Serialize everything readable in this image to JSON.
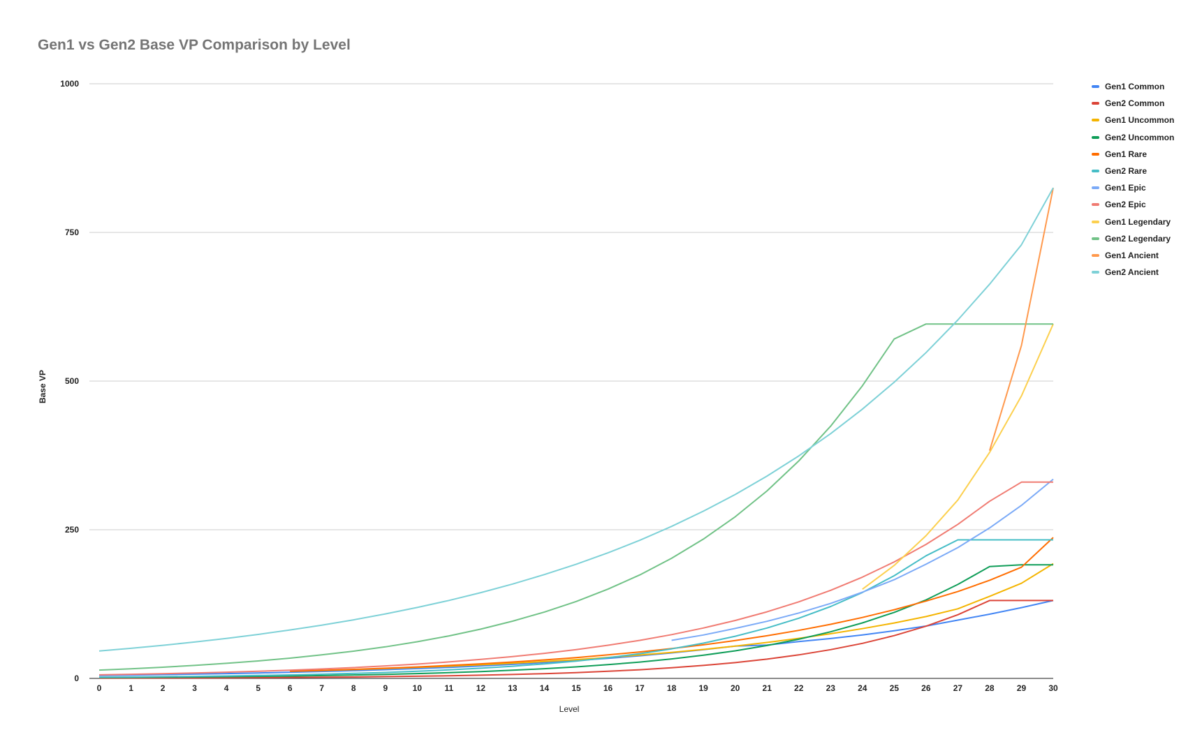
{
  "chart_data": {
    "type": "line",
    "title": "Gen1 vs Gen2 Base VP Comparison by Level",
    "xlabel": "Level",
    "ylabel": "Base VP",
    "xlim": [
      0,
      30
    ],
    "ylim": [
      0,
      1000
    ],
    "x_ticks": [
      0,
      1,
      2,
      3,
      4,
      5,
      6,
      7,
      8,
      9,
      10,
      11,
      12,
      13,
      14,
      15,
      16,
      17,
      18,
      19,
      20,
      21,
      22,
      23,
      24,
      25,
      26,
      27,
      28,
      29,
      30
    ],
    "y_ticks": [
      0,
      250,
      500,
      750,
      1000
    ],
    "grid": true,
    "legend_position": "right",
    "series": [
      {
        "name": "Gen1 Common",
        "color": "#4285f4",
        "x": [
          0,
          1,
          2,
          3,
          4,
          5,
          6,
          7,
          8,
          9,
          10,
          11,
          12,
          13,
          14,
          15,
          16,
          17,
          18,
          19,
          20,
          21,
          22,
          23,
          24,
          25,
          26,
          27,
          28,
          29,
          30
        ],
        "values": [
          5.0,
          5.6,
          6.4,
          7.2,
          8.1,
          9.1,
          10.3,
          11.6,
          13.0,
          14.7,
          16.5,
          18.6,
          21.0,
          23.6,
          26.6,
          30.0,
          33.7,
          38.0,
          42.8,
          48.2,
          54.2,
          56,
          62,
          67,
          73,
          80,
          88,
          98,
          108,
          119,
          131
        ]
      },
      {
        "name": "Gen2 Common",
        "color": "#db4437",
        "x": [
          0,
          1,
          2,
          3,
          4,
          5,
          6,
          7,
          8,
          9,
          10,
          11,
          12,
          13,
          14,
          15,
          16,
          17,
          18,
          19,
          20,
          21,
          22,
          23,
          24,
          25,
          26,
          27,
          28,
          29,
          30
        ],
        "values": [
          0.5,
          0.6,
          0.7,
          0.9,
          1.1,
          1.3,
          1.6,
          2.0,
          2.4,
          3.0,
          3.6,
          4.4,
          5.4,
          6.6,
          8.0,
          9.8,
          12.0,
          14.6,
          17.8,
          21.8,
          26.5,
          32.4,
          39.5,
          48.3,
          58.9,
          71.9,
          87.8,
          107,
          131,
          131,
          131
        ]
      },
      {
        "name": "Gen1 Uncommon",
        "color": "#f4b400",
        "x": [
          6,
          7,
          8,
          9,
          10,
          11,
          12,
          13,
          14,
          15,
          16,
          17,
          18,
          19,
          20,
          21,
          22,
          23,
          24,
          25,
          26,
          27,
          28,
          29,
          30
        ],
        "values": [
          12.0,
          13.3,
          14.8,
          16.5,
          18.4,
          20.5,
          22.9,
          25.5,
          28.4,
          31.6,
          35.2,
          39.3,
          43.7,
          48.7,
          54.3,
          60.5,
          67.4,
          75.1,
          83.7,
          93.2,
          104,
          117,
          138,
          160,
          193
        ]
      },
      {
        "name": "Gen2 Uncommon",
        "color": "#0f9d58",
        "x": [
          0,
          1,
          2,
          3,
          4,
          5,
          6,
          7,
          8,
          9,
          10,
          11,
          12,
          13,
          14,
          15,
          16,
          17,
          18,
          19,
          20,
          21,
          22,
          23,
          24,
          25,
          26,
          27,
          28,
          29,
          30
        ],
        "values": [
          1.4,
          1.7,
          2.0,
          2.4,
          2.8,
          3.4,
          4.0,
          4.8,
          5.7,
          6.8,
          8.1,
          9.6,
          11.5,
          13.7,
          16.3,
          19.4,
          23.1,
          27.5,
          32.7,
          39.0,
          46.4,
          55.3,
          65.8,
          78.4,
          93.3,
          111,
          132,
          158,
          188,
          191,
          191
        ]
      },
      {
        "name": "Gen1 Rare",
        "color": "#ff6d00",
        "x": [
          6,
          7,
          8,
          9,
          10,
          11,
          12,
          13,
          14,
          15,
          16,
          17,
          18,
          19,
          20,
          21,
          22,
          23,
          24,
          25,
          26,
          27,
          28,
          29,
          30
        ],
        "values": [
          12.0,
          13.5,
          15.2,
          17.1,
          19.3,
          21.8,
          24.5,
          27.6,
          31.1,
          35.0,
          39.5,
          44.5,
          50.1,
          56.5,
          63.6,
          71.7,
          80.8,
          91.0,
          102.5,
          115.5,
          130,
          146,
          165,
          187,
          237
        ]
      },
      {
        "name": "Gen2 Rare",
        "color": "#46bdc6",
        "x": [
          0,
          1,
          2,
          3,
          4,
          5,
          6,
          7,
          8,
          9,
          10,
          11,
          12,
          13,
          14,
          15,
          16,
          17,
          18,
          19,
          20,
          21,
          22,
          23,
          24,
          25,
          26,
          27,
          28,
          29,
          30
        ],
        "values": [
          2.0,
          2.4,
          2.9,
          3.4,
          4.1,
          4.9,
          5.9,
          7.0,
          8.4,
          10.0,
          12.0,
          14.3,
          17.1,
          20.4,
          24.4,
          29.1,
          34.8,
          41.6,
          49.7,
          59.3,
          70.9,
          84.7,
          101.2,
          120.9,
          144.5,
          172.6,
          206.2,
          233,
          233,
          233,
          233
        ]
      },
      {
        "name": "Gen1 Epic",
        "color": "#7baaf7",
        "x": [
          18,
          19,
          20,
          21,
          22,
          23,
          24,
          25,
          26,
          27,
          28,
          29,
          30
        ],
        "values": [
          64,
          73,
          84,
          96,
          110,
          126,
          145,
          166,
          192,
          220,
          253,
          291,
          335
        ]
      },
      {
        "name": "Gen2 Epic",
        "color": "#f07b72",
        "x": [
          0,
          1,
          2,
          3,
          4,
          5,
          6,
          7,
          8,
          9,
          10,
          11,
          12,
          13,
          14,
          15,
          16,
          17,
          18,
          19,
          20,
          21,
          22,
          23,
          24,
          25,
          26,
          27,
          28,
          29,
          30
        ],
        "values": [
          6.0,
          6.9,
          7.9,
          9.1,
          10.5,
          12.0,
          13.8,
          15.9,
          18.2,
          21.0,
          24.1,
          27.7,
          31.9,
          36.6,
          42.1,
          48.4,
          55.7,
          64.0,
          73.6,
          84.7,
          97.4,
          112,
          128.8,
          148.1,
          170.3,
          195.9,
          225.3,
          259.0,
          297.9,
          330,
          330
        ]
      },
      {
        "name": "Gen1 Legendary",
        "color": "#fcd04f",
        "x": [
          24,
          25,
          26,
          27,
          28,
          29,
          30
        ],
        "values": [
          150,
          190,
          240,
          300,
          380,
          475,
          596
        ]
      },
      {
        "name": "Gen2 Legendary",
        "color": "#71c287",
        "x": [
          0,
          1,
          2,
          3,
          4,
          5,
          6,
          7,
          8,
          9,
          10,
          11,
          12,
          13,
          14,
          15,
          16,
          17,
          18,
          19,
          20,
          21,
          22,
          23,
          24,
          25,
          26,
          27,
          28,
          29,
          30
        ],
        "values": [
          14.0,
          16.2,
          18.8,
          21.8,
          25.3,
          29.3,
          34.0,
          39.5,
          45.8,
          53.1,
          61.6,
          71.5,
          82.9,
          96.2,
          111.6,
          129.4,
          150.1,
          174.1,
          202.0,
          234.3,
          271.8,
          315.3,
          365.7,
          424.2,
          492.1,
          570.8,
          596,
          596,
          596,
          596,
          596
        ]
      },
      {
        "name": "Gen1 Ancient",
        "color": "#ff994d",
        "x": [
          28,
          29,
          30
        ],
        "values": [
          383,
          560,
          825
        ]
      },
      {
        "name": "Gen2 Ancient",
        "color": "#7ed1d7",
        "x": [
          0,
          1,
          2,
          3,
          4,
          5,
          6,
          7,
          8,
          9,
          10,
          11,
          12,
          13,
          14,
          15,
          16,
          17,
          18,
          19,
          20,
          21,
          22,
          23,
          24,
          25,
          26,
          27,
          28,
          29,
          30
        ],
        "values": [
          46.0,
          50.6,
          55.6,
          61.2,
          67.3,
          74.0,
          81.4,
          89.6,
          98.5,
          108.4,
          119.2,
          131.1,
          144.3,
          158.7,
          174.6,
          192.0,
          211.2,
          232.3,
          255.6,
          281.2,
          309.3,
          340.2,
          374.2,
          411.6,
          452.8,
          498.1,
          547.9,
          602.7,
          662.9,
          729.2,
          825
        ]
      }
    ]
  }
}
